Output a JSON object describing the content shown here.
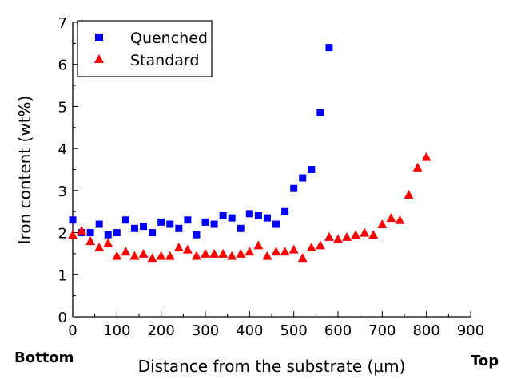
{
  "chart_data": {
    "type": "scatter",
    "xlabel": "Distance from the substrate (µm)",
    "ylabel": "Iron content (wt%)",
    "xlim": [
      0,
      900
    ],
    "ylim": [
      0,
      7
    ],
    "x_ticks": [
      "0",
      "100",
      "200",
      "300",
      "400",
      "500",
      "600",
      "700",
      "800",
      "900"
    ],
    "y_ticks": [
      "0",
      "1",
      "2",
      "3",
      "4",
      "5",
      "6",
      "7"
    ],
    "x_end_labels": {
      "left": "Bottom",
      "right": "Top"
    },
    "legend_position": "top-left",
    "grid": false,
    "series": [
      {
        "name": "Quenched",
        "marker": "square",
        "color": "#0000ff",
        "x": [
          0,
          20,
          40,
          60,
          80,
          100,
          120,
          140,
          160,
          180,
          200,
          220,
          240,
          260,
          280,
          300,
          320,
          340,
          360,
          380,
          400,
          420,
          440,
          460,
          480,
          500,
          520,
          540,
          560,
          580
        ],
        "y": [
          2.3,
          2.0,
          2.0,
          2.2,
          1.95,
          2.0,
          2.3,
          2.1,
          2.15,
          2.0,
          2.25,
          2.2,
          2.1,
          2.3,
          1.95,
          2.25,
          2.2,
          2.4,
          2.35,
          2.1,
          2.45,
          2.4,
          2.35,
          2.2,
          2.5,
          3.05,
          3.3,
          3.5,
          4.85,
          6.4
        ]
      },
      {
        "name": "Standard",
        "marker": "triangle",
        "color": "#ff0000",
        "x": [
          0,
          20,
          40,
          60,
          80,
          100,
          120,
          140,
          160,
          180,
          200,
          220,
          240,
          260,
          280,
          300,
          320,
          340,
          360,
          380,
          400,
          420,
          440,
          460,
          480,
          500,
          520,
          540,
          560,
          580,
          600,
          620,
          640,
          660,
          680,
          700,
          720,
          740,
          760,
          780,
          800
        ],
        "y": [
          1.95,
          2.05,
          1.8,
          1.65,
          1.75,
          1.45,
          1.55,
          1.45,
          1.5,
          1.4,
          1.45,
          1.45,
          1.65,
          1.6,
          1.45,
          1.5,
          1.5,
          1.5,
          1.45,
          1.5,
          1.55,
          1.7,
          1.45,
          1.55,
          1.55,
          1.6,
          1.4,
          1.65,
          1.7,
          1.9,
          1.85,
          1.9,
          1.95,
          2.0,
          1.95,
          2.2,
          2.35,
          2.3,
          2.9,
          3.55,
          3.8
        ]
      }
    ]
  }
}
